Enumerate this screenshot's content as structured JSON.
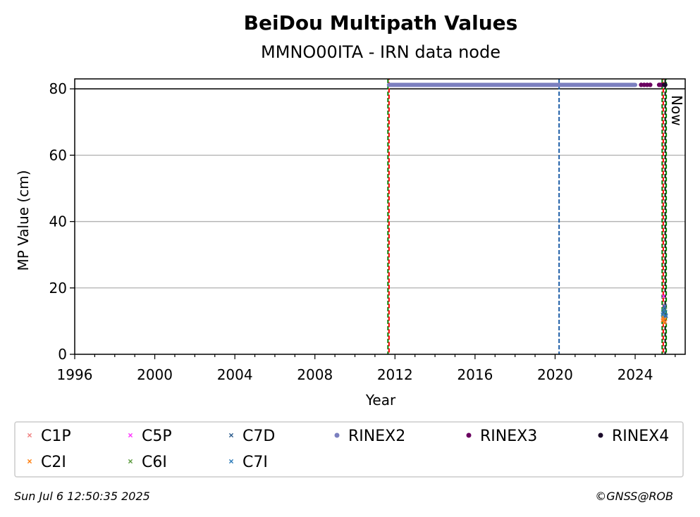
{
  "chart_data": {
    "type": "scatter",
    "title": "BeiDou Multipath Values",
    "subtitle": "MMNO00ITA - IRN data node",
    "xlabel": "Year",
    "ylabel": "MP Value (cm)",
    "xlim": [
      1996,
      2026.5
    ],
    "ylim": [
      0,
      83
    ],
    "x_ticks": [
      1996,
      2000,
      2004,
      2008,
      2012,
      2016,
      2020,
      2024
    ],
    "y_ticks": [
      0,
      20,
      40,
      60,
      80
    ],
    "grid": "y",
    "reference_line_y": 80,
    "now_label": "Now",
    "vertical_lines": [
      {
        "x": 2011.65,
        "colors": [
          "#008000",
          "#ff0000"
        ],
        "style": "dashed"
      },
      {
        "x": 2020.2,
        "colors": [
          "#1f5fa8"
        ],
        "style": "dashed"
      },
      {
        "x": 2025.35,
        "colors": [
          "#008000",
          "#ff0000"
        ],
        "style": "dashed"
      },
      {
        "x": 2025.5,
        "colors": [
          "#000000",
          "#008000"
        ],
        "style": "dashed"
      }
    ],
    "series": [
      {
        "name": "C1P",
        "marker": "x",
        "color": "#f08080",
        "x": [
          2025.4,
          2025.45,
          2025.5
        ],
        "y": [
          10.5,
          11.5,
          9.8
        ]
      },
      {
        "name": "C2I",
        "marker": "x",
        "color": "#ff7f0e",
        "x": [
          2025.38,
          2025.42,
          2025.46,
          2025.5
        ],
        "y": [
          10.2,
          11.0,
          9.5,
          10.6
        ]
      },
      {
        "name": "C5P",
        "marker": "x",
        "color": "#ff33ff",
        "x": [
          2025.42,
          2025.48
        ],
        "y": [
          17.5,
          14.5
        ]
      },
      {
        "name": "C6I",
        "marker": "x",
        "color": "#5a9a3c",
        "x": [
          2025.44,
          2025.5
        ],
        "y": [
          12.8,
          13.5
        ]
      },
      {
        "name": "C7D",
        "marker": "x",
        "color": "#2a5a8c",
        "x": [
          2025.4,
          2025.46,
          2025.52
        ],
        "y": [
          12.5,
          13.8,
          11.8
        ]
      },
      {
        "name": "C7I",
        "marker": "x",
        "color": "#2b7bb9",
        "x": [
          2025.38,
          2025.42,
          2025.46,
          2025.5,
          2025.54
        ],
        "y": [
          12.0,
          13.2,
          14.5,
          12.8,
          11.5
        ]
      },
      {
        "name": "RINEX2",
        "marker": "dot",
        "color": "#7b7fbf",
        "x_range": [
          2011.7,
          2024.0
        ],
        "y": 81.2
      },
      {
        "name": "RINEX3",
        "marker": "dot",
        "color": "#6a0060",
        "x": [
          2024.3,
          2024.45,
          2024.6,
          2024.75,
          2025.2,
          2025.3
        ],
        "y": [
          81.2,
          81.2,
          81.2,
          81.2,
          81.2,
          81.2
        ]
      },
      {
        "name": "RINEX4",
        "marker": "dot",
        "color": "#1a0a2a",
        "x": [
          2025.45,
          2025.5
        ],
        "y": [
          81.2,
          81.2
        ]
      }
    ],
    "legend": {
      "placement": "below",
      "entries": [
        "C1P",
        "C2I",
        "C5P",
        "C6I",
        "C7D",
        "C7I",
        "RINEX2",
        "RINEX3",
        "RINEX4"
      ]
    }
  },
  "footer": {
    "timestamp": "Sun Jul  6 12:50:35 2025",
    "credit": "©GNSS@ROB"
  }
}
